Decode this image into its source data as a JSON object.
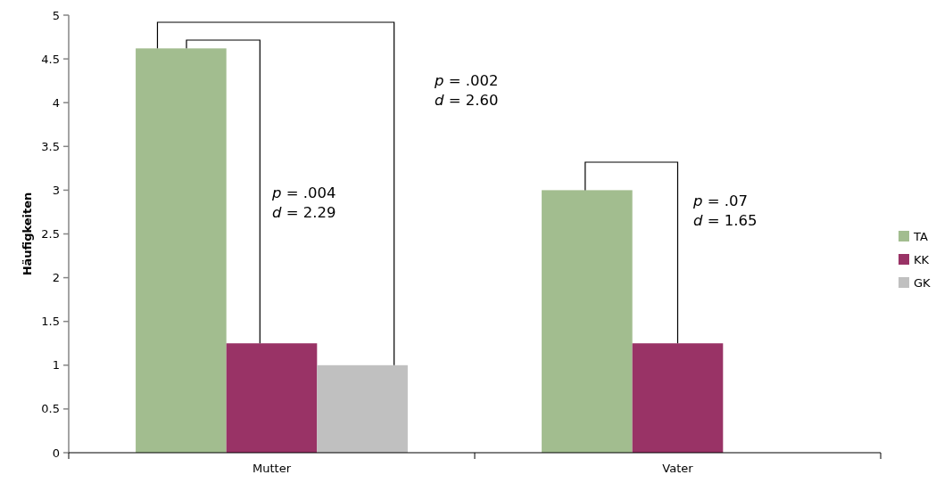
{
  "chart_data": {
    "type": "bar",
    "ylabel": "Häufigkeiten",
    "categories": [
      "Mutter",
      "Vater"
    ],
    "series": [
      {
        "name": "TA",
        "color": "#a2bd8f",
        "values": [
          4.62,
          3.0
        ]
      },
      {
        "name": "KK",
        "color": "#993366",
        "values": [
          1.25,
          1.25
        ]
      },
      {
        "name": "GK",
        "color": "#c0c0c0",
        "values": [
          1.0,
          null
        ]
      }
    ],
    "ylim": [
      0,
      5
    ],
    "yticks": [
      0,
      0.5,
      1,
      1.5,
      2,
      2.5,
      3,
      3.5,
      4,
      4.5,
      5
    ],
    "grid": false,
    "legend": "right",
    "annotations": [
      "p = .004\nd = 2.29",
      "p = .002\nd = 2.60",
      "p = .07\nd = 1.65"
    ]
  }
}
